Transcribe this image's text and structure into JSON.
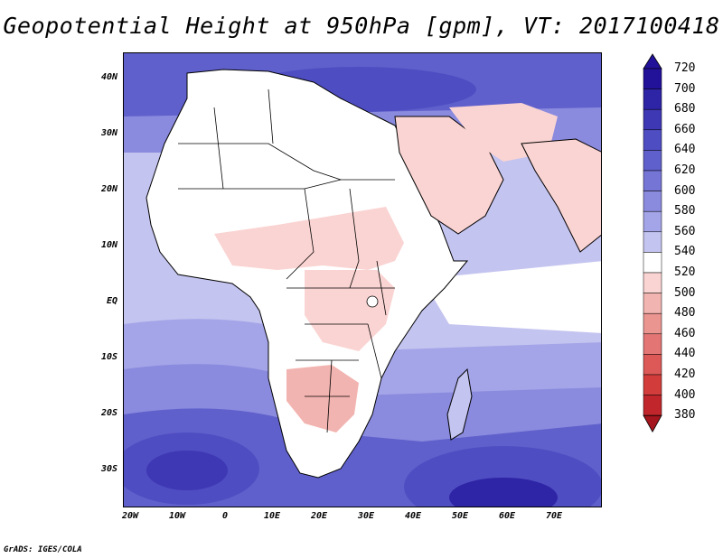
{
  "title": "Geopotential Height at 950hPa [gpm], VT: 2017100418",
  "credit": "GrADS: IGES/COLA",
  "axes": {
    "lat_labels": [
      "40N",
      "30N",
      "20N",
      "10N",
      "EQ",
      "10S",
      "20S",
      "30S"
    ],
    "lon_labels": [
      "20W",
      "10W",
      "0",
      "10E",
      "20E",
      "30E",
      "40E",
      "50E",
      "60E",
      "70E"
    ]
  },
  "colorbar": {
    "levels": [
      "720",
      "700",
      "680",
      "660",
      "640",
      "620",
      "600",
      "580",
      "560",
      "540",
      "520",
      "500",
      "480",
      "460",
      "440",
      "420",
      "400",
      "380"
    ],
    "colors": [
      "#221199",
      "#2e24a6",
      "#3e38b4",
      "#4f4dc2",
      "#6060cc",
      "#7575d6",
      "#8a8ade",
      "#a4a4e8",
      "#c4c4f0",
      "#ffffff",
      "#fad4d2",
      "#f2b4b0",
      "#eb9591",
      "#e37674",
      "#dc5957",
      "#d23c3a",
      "#c0262b",
      "#a4151d"
    ]
  },
  "map": {
    "colors": {
      "ocean_deep": "#2e24a6",
      "ocean_mid": "#6060cc",
      "ocean_light": "#a4a4e8",
      "ocean_pale": "#c4c4f0",
      "land_white": "#ffffff",
      "land_pink": "#fad4d2",
      "land_rose": "#f2b4b0",
      "coast": "#000000"
    }
  }
}
